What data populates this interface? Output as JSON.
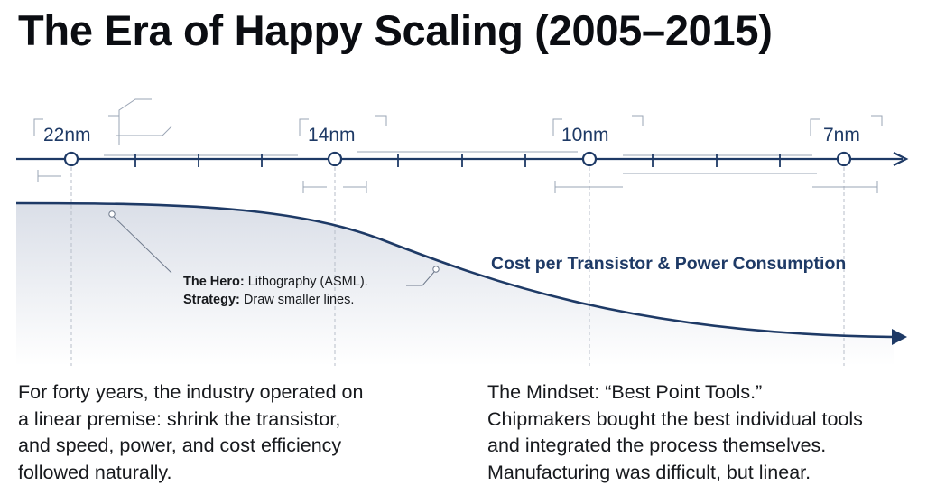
{
  "title": "The Era of Happy Scaling (2005–2015)",
  "timeline": {
    "nodes": [
      {
        "label": "22nm"
      },
      {
        "label": "14nm"
      },
      {
        "label": "10nm"
      },
      {
        "label": "7nm"
      }
    ]
  },
  "curve": {
    "label": "Cost per Transistor & Power Consumption"
  },
  "callout": {
    "line1_bold": "The Hero:",
    "line1_text": " Lithography (ASML).",
    "line2_bold": "Strategy:",
    "line2_text": " Draw smaller lines."
  },
  "left_paragraph": {
    "lines": [
      "For forty years, the industry operated on",
      "a linear premise: shrink the transistor,",
      "and speed, power, and cost efficiency",
      "followed naturally."
    ]
  },
  "right_paragraph": {
    "lines": [
      "The Mindset: “Best Point Tools.”",
      "Chipmakers bought the best individual tools",
      "and integrated the process themselves.",
      "Manufacturing was difficult, but linear."
    ]
  },
  "colors": {
    "navy": "#1e3a66",
    "blueprint": "#9aa4b4",
    "text": "#17191d"
  }
}
